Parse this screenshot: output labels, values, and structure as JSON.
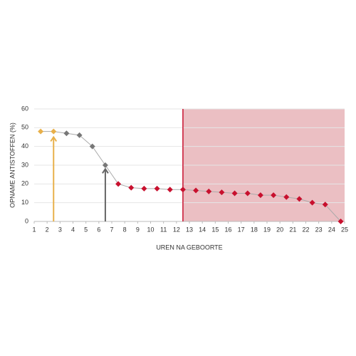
{
  "chart_data": {
    "type": "line",
    "x_label": "UREN NA GEBOORTE",
    "y_label": "OPNAME ANTISTOFFEN (%)",
    "x": [
      1.5,
      2.5,
      3.5,
      4.5,
      5.5,
      6.5,
      7.5,
      8.5,
      9.5,
      10.5,
      11.5,
      12.5,
      13.5,
      14.5,
      15.5,
      16.5,
      17.5,
      18.5,
      19.5,
      20.5,
      21.5,
      22.5,
      23.5,
      24.7
    ],
    "values": [
      48,
      48,
      47,
      46,
      40,
      30,
      20,
      18,
      17.5,
      17.5,
      17,
      17,
      16.5,
      16,
      15.5,
      15,
      15,
      14,
      14,
      13,
      12,
      10,
      9,
      0
    ],
    "line_color": "#aaaaaa",
    "marker_colors": [
      "#e8b04a",
      "#e8b04a",
      "#777777",
      "#777777",
      "#777777",
      "#777777",
      "#c8102e",
      "#c8102e",
      "#c8102e",
      "#c8102e",
      "#c8102e",
      "#c8102e",
      "#c8102e",
      "#c8102e",
      "#c8102e",
      "#c8102e",
      "#c8102e",
      "#c8102e",
      "#c8102e",
      "#c8102e",
      "#c8102e",
      "#c8102e",
      "#c8102e",
      "#c8102e"
    ],
    "arrows": [
      {
        "x": 2.5,
        "y": 45,
        "color": "#e8b04a"
      },
      {
        "x": 6.5,
        "y": 28,
        "color": "#666666"
      }
    ],
    "shade": {
      "from": 12.5,
      "to": 25,
      "color": "#e8b4b8",
      "line_color": "#c8102e"
    },
    "xlim": [
      1,
      25
    ],
    "xticks": [
      1,
      2,
      3,
      4,
      5,
      6,
      7,
      8,
      9,
      10,
      11,
      12,
      13,
      14,
      15,
      16,
      17,
      18,
      19,
      20,
      21,
      22,
      23,
      24,
      25
    ],
    "ylim": [
      0,
      60
    ],
    "yticks": [
      0,
      10,
      20,
      30,
      40,
      50,
      60
    ],
    "grid": true
  }
}
